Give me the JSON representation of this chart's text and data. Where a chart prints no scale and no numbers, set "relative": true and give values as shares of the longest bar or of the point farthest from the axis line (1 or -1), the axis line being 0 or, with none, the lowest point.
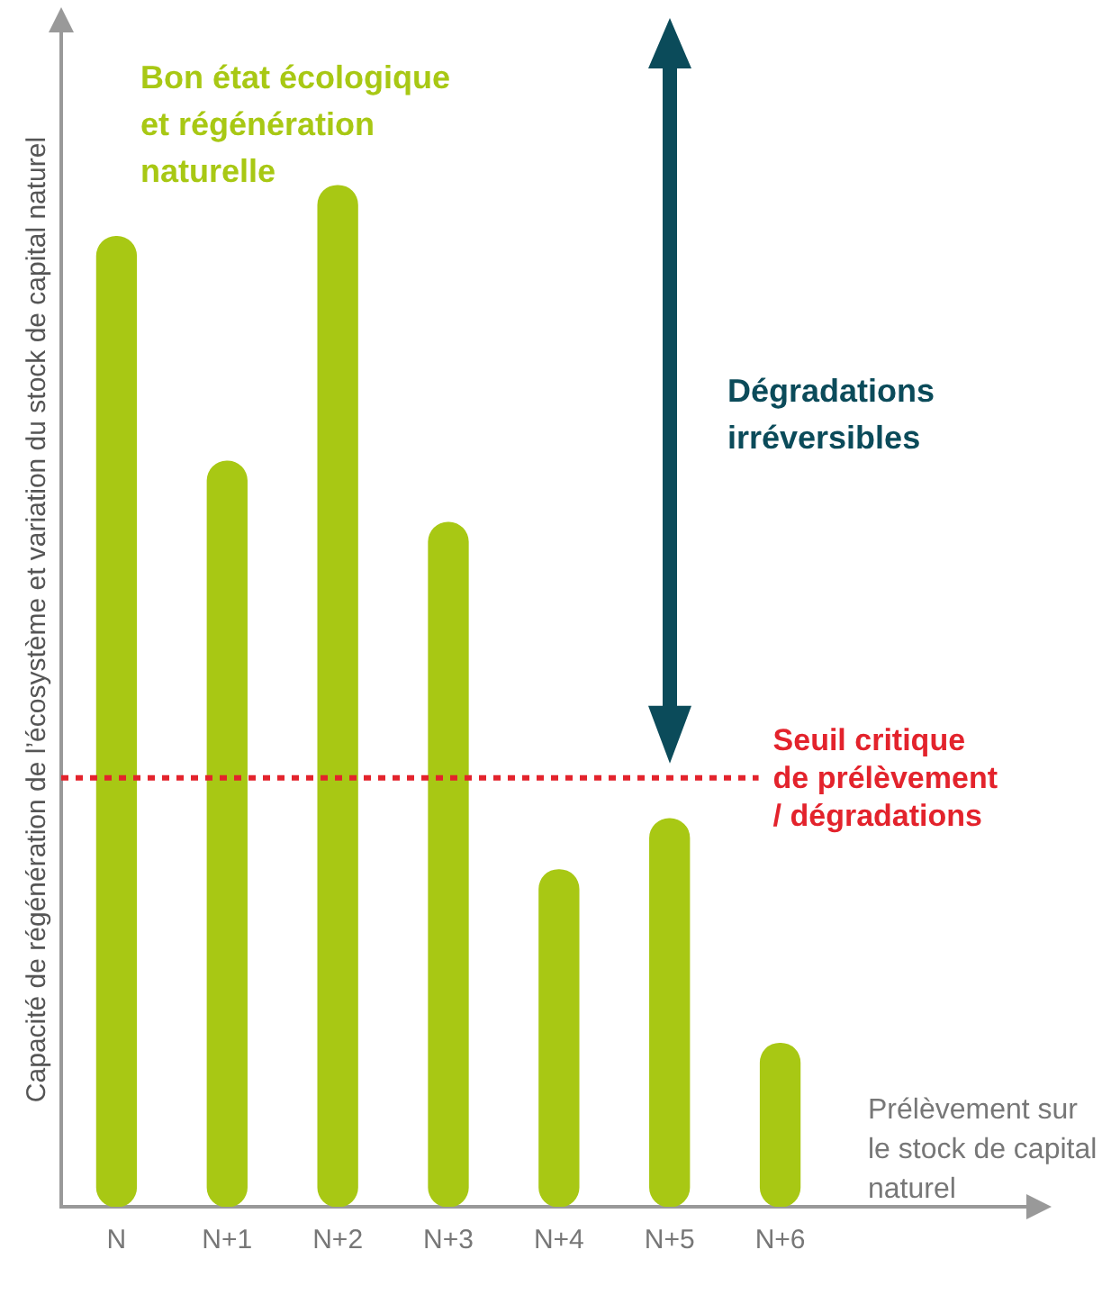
{
  "chart_data": {
    "type": "bar",
    "relative": true,
    "ylabel": "Capacité de régénération de l’écosystème et variation du stock de capital naturel",
    "categories": [
      "N",
      "N+1",
      "N+2",
      "N+3",
      "N+4",
      "N+5",
      "N+6"
    ],
    "values": [
      0.95,
      0.73,
      1,
      0.67,
      0.33,
      0.38,
      0.16
    ],
    "color": "#a8c814",
    "ref_lines": [
      {
        "axis": "y",
        "value": 0.42,
        "label": "Seuil critique de prélèvement / dégradations",
        "color": "#e3232c",
        "line_style": "dotted"
      }
    ],
    "annotations": [
      "Bon état écologique et régénération naturelle",
      "Dégradations irréversibles",
      "Prélèvement sur le stock de capital naturel"
    ],
    "grid": false,
    "legend": false
  }
}
